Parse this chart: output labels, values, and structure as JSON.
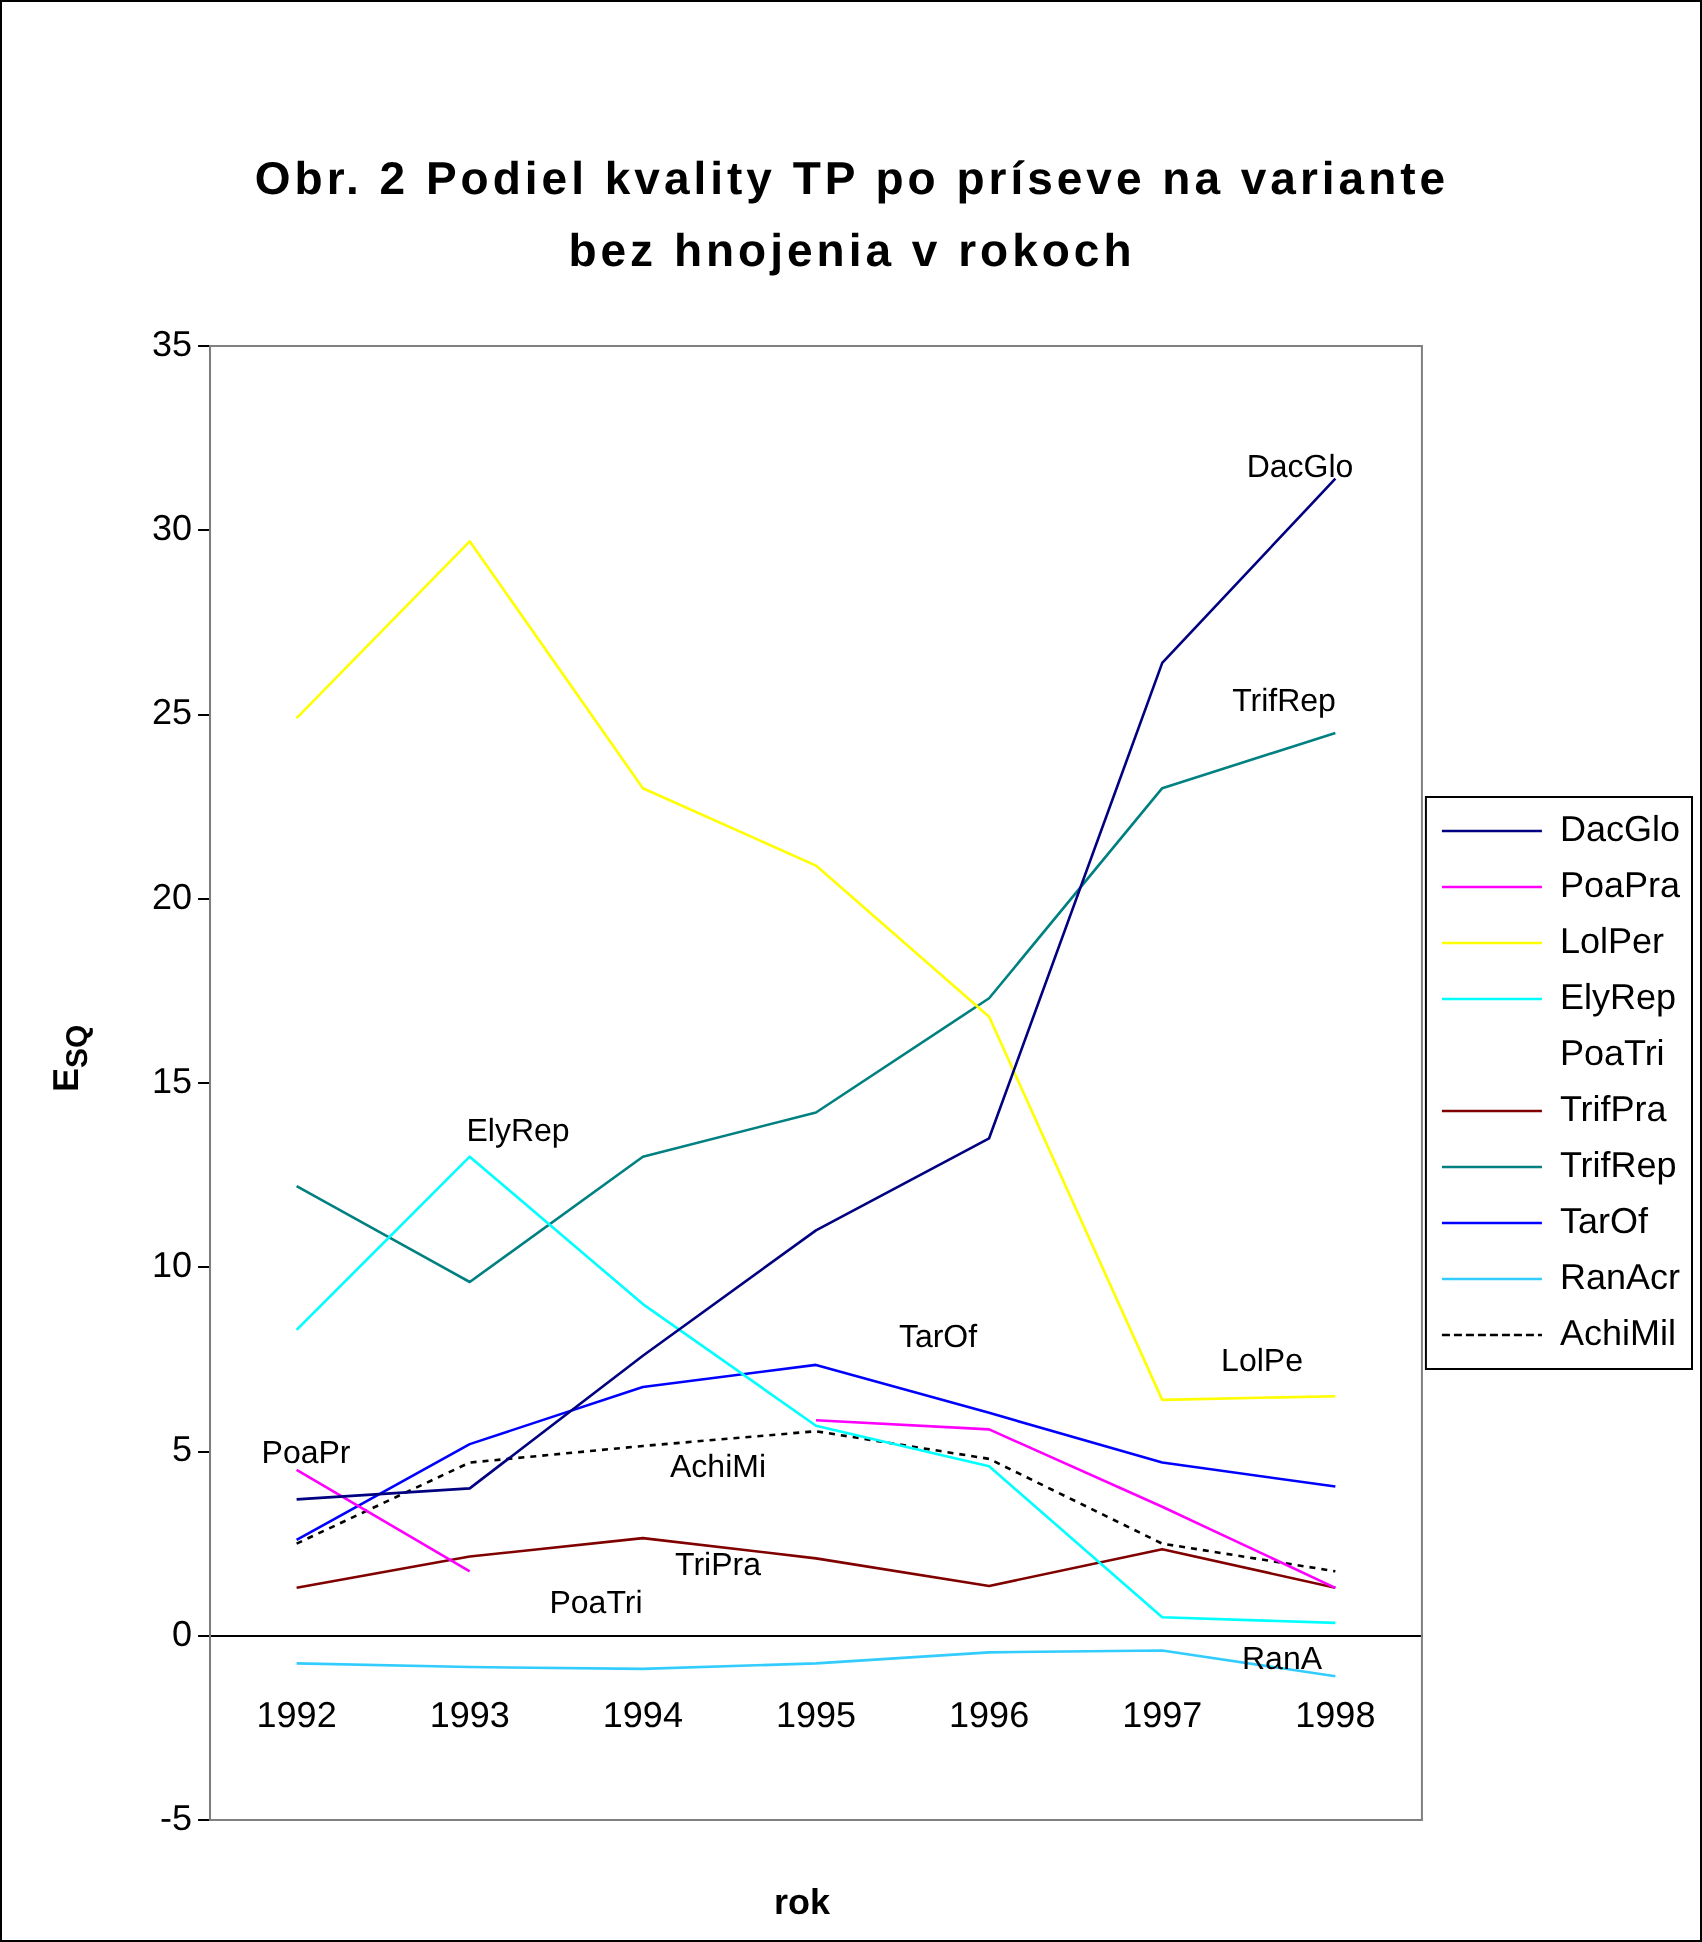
{
  "chart_data": {
    "type": "line",
    "title": "Obr. 2  Podiel kvality TP po príseve na variante bez hnojenia v rokoch",
    "xlabel": "rok",
    "ylabel": "E$_{SQ}$",
    "categories": [
      "1992",
      "1993",
      "1994",
      "1995",
      "1996",
      "1997",
      "1998"
    ],
    "ylim": [
      -5,
      35
    ],
    "yticks": [
      -5,
      0,
      5,
      10,
      15,
      20,
      25,
      30,
      35
    ],
    "grid": false,
    "legend": "right",
    "marker": "none",
    "series": [
      {
        "name": "DacGlo",
        "color": "#000080",
        "values": [
          3.7,
          4.0,
          7.6,
          11.0,
          13.5,
          26.4,
          31.4
        ]
      },
      {
        "name": "PoaPra",
        "color": "#ff00ff",
        "values": [
          4.5,
          1.75,
          null,
          5.85,
          5.6,
          3.5,
          1.3
        ]
      },
      {
        "name": "LolPer",
        "color": "#ffff00",
        "values": [
          24.9,
          29.7,
          23.0,
          20.9,
          16.8,
          6.4,
          6.5
        ]
      },
      {
        "name": "ElyRep",
        "color": "#00ffff",
        "values": [
          8.3,
          13.0,
          9.0,
          5.7,
          4.6,
          0.5,
          0.35
        ]
      },
      {
        "name": "PoaTri",
        "values": [
          null,
          null,
          null,
          null,
          null,
          null,
          null
        ]
      },
      {
        "name": "TrifPra",
        "color": "#800000",
        "values": [
          1.3,
          2.15,
          2.65,
          2.1,
          1.35,
          2.35,
          1.3
        ]
      },
      {
        "name": "TrifRep",
        "color": "#008080",
        "values": [
          12.2,
          9.6,
          13.0,
          14.2,
          17.3,
          23.0,
          24.5
        ]
      },
      {
        "name": "TarOf",
        "color": "#0000ff",
        "values": [
          2.6,
          5.2,
          6.75,
          7.35,
          6.05,
          4.7,
          4.05
        ]
      },
      {
        "name": "RanAcr",
        "color": "#33ccff",
        "values": [
          -0.75,
          -0.85,
          -0.9,
          -0.75,
          -0.45,
          -0.4,
          -1.1
        ]
      },
      {
        "name": "AchiMil",
        "color": "#000000",
        "line_style": "dotted",
        "values": [
          2.5,
          4.7,
          5.15,
          5.55,
          4.8,
          2.5,
          1.75
        ]
      }
    ],
    "annotations": [
      "DacGlo",
      "TrifRep",
      "ElyRep",
      "TarOf",
      "LolPe",
      "PoaPr",
      "AchiMi",
      "TriPra",
      "PoaTri",
      "RanA"
    ]
  }
}
